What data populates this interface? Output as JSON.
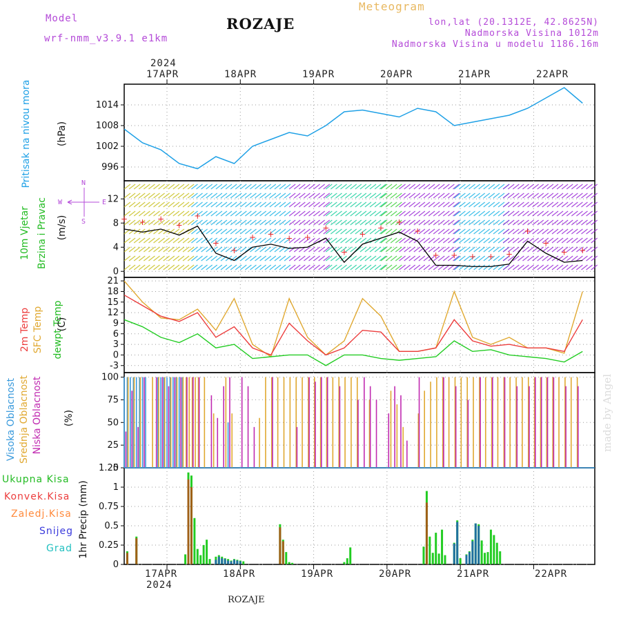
{
  "header": {
    "model_label": "Model",
    "model_name": "wrf-nmm_v3.9.1 e1km",
    "station": "ROZAJE",
    "product": "Meteogram",
    "coords": "lon,lat (20.1312E, 42.8625N)",
    "elevation": "Nadmorska Visina 1012m",
    "model_elevation": "Nadmorska Visina u modelu 1186.16m",
    "watermark": "made by Angel",
    "footer_station": "ROZAJE"
  },
  "colors": {
    "pressure": "#1ea0e6",
    "temp": "#ec3c3c",
    "sfc": "#e0a830",
    "dewpt": "#22cc22",
    "high_cloud": "#3a9adc",
    "mid_cloud": "#e0a830",
    "low_cloud": "#c02ab0",
    "total_precip": "#22cc22",
    "convective": "#ec3c3c",
    "freezing": "#ff8a3c",
    "snow": "#3a3adc",
    "graupel": "#22c0c0",
    "model": "#b44ad8",
    "meteogram": "#e8b860"
  },
  "axes": {
    "year": "2024",
    "dates": [
      "17APR",
      "18APR",
      "19APR",
      "20APR",
      "21APR",
      "22APR"
    ]
  },
  "panels": {
    "pressure": {
      "label1": "Pritisak na nivou mora",
      "unit": "(hPa)"
    },
    "wind": {
      "label1": "10m Vjetar",
      "label2": "Brzina i Pravac",
      "unit": "(m/s)",
      "compass_n": "N",
      "compass_s": "S",
      "compass_w": "W",
      "compass_e": "E"
    },
    "temp": {
      "label1": "2m Temp",
      "label2": "SFC Temp",
      "label3": "dewpt Temp",
      "unit": "(C)"
    },
    "cloud": {
      "label1": "Visoka Oblacnost",
      "label2": "Srednja Oblacnost",
      "label3": "Niska Oblacnost",
      "unit": "(%)"
    },
    "precip": {
      "unit": "1hr Precip (mm)",
      "legend": [
        "Ukupna Kisa",
        "Konvek.Kisa",
        "Zaledj.Kisa",
        "Snijeg",
        "Grad"
      ]
    }
  },
  "chart_data": [
    {
      "type": "line",
      "title": "Pritisak na nivou mora",
      "ylabel": "(hPa)",
      "ylim": [
        992,
        1020
      ],
      "yticks": [
        996,
        1002,
        1008,
        1014
      ],
      "x_hours": [
        0,
        6,
        12,
        18,
        24,
        30,
        36,
        42,
        48,
        54,
        60,
        66,
        72,
        78,
        84,
        90,
        96,
        102,
        108,
        114,
        120,
        126,
        132,
        138,
        144,
        150
      ],
      "series": [
        {
          "values": [
            1007,
            1003,
            1001,
            997,
            995.5,
            999,
            997,
            1002,
            1004,
            1006,
            1005,
            1008,
            1012,
            1012.5,
            1011.5,
            1010.5,
            1013,
            1012,
            1008,
            1009,
            1010,
            1011,
            1013,
            1016,
            1019,
            1014.5
          ]
        }
      ]
    },
    {
      "type": "line",
      "title": "10m Vjetar Brzina i Pravac",
      "ylabel": "(m/s)",
      "ylim": [
        -1,
        15
      ],
      "yticks": [
        0,
        4,
        8,
        12
      ],
      "x_hours": [
        0,
        6,
        12,
        18,
        24,
        30,
        36,
        42,
        48,
        54,
        60,
        66,
        72,
        78,
        84,
        90,
        96,
        102,
        108,
        114,
        120,
        126,
        132,
        138,
        144,
        150
      ],
      "series": [
        {
          "values": [
            7,
            6.5,
            7,
            6,
            7.5,
            3,
            1.8,
            4,
            4.5,
            3.8,
            4,
            5.5,
            1.5,
            4.5,
            5.5,
            6.5,
            5,
            1,
            1,
            0.8,
            0.8,
            1.2,
            5,
            3,
            1.5,
            1.8
          ]
        }
      ]
    },
    {
      "type": "line",
      "title": "2m Temp / SFC Temp / dewpt Temp",
      "ylabel": "(C)",
      "ylim": [
        -5,
        22
      ],
      "yticks": [
        -3,
        0,
        3,
        6,
        9,
        12,
        15,
        18,
        21
      ],
      "x_hours": [
        0,
        6,
        12,
        18,
        24,
        30,
        36,
        42,
        48,
        54,
        60,
        66,
        72,
        78,
        84,
        90,
        96,
        102,
        108,
        114,
        120,
        126,
        132,
        138,
        144,
        150
      ],
      "series": [
        {
          "name": "2m Temp",
          "values": [
            17,
            14,
            11,
            9.5,
            12,
            5,
            8,
            2,
            0,
            9,
            4,
            0,
            2,
            7,
            6.5,
            1,
            1,
            2,
            10,
            4,
            2.5,
            3,
            2,
            2,
            1,
            10
          ]
        },
        {
          "name": "SFC Temp",
          "values": [
            21,
            15,
            10.5,
            10,
            13,
            7,
            16,
            3,
            -0.5,
            16,
            5,
            0,
            4,
            16,
            11,
            1,
            1,
            2,
            18,
            5,
            3,
            5,
            2,
            2,
            0.5,
            18
          ]
        },
        {
          "name": "dewpt Temp",
          "values": [
            10,
            8,
            5,
            3.5,
            6,
            2,
            3,
            -1,
            -0.5,
            0,
            0,
            -3,
            0,
            0,
            -1,
            -1.5,
            -1,
            -0.5,
            4,
            1,
            1.5,
            0,
            -0.5,
            -1,
            -2,
            1
          ]
        }
      ]
    },
    {
      "type": "bar",
      "title": "Visoka / Srednja / Niska Oblacnost",
      "ylabel": "(%)",
      "ylim": [
        0,
        105
      ],
      "yticks": [
        0,
        25,
        50,
        75,
        100
      ],
      "series": [
        {
          "name": "Visoka Oblacnost",
          "x_hours": [
            0,
            1,
            2,
            3,
            4,
            5,
            6,
            7,
            11,
            12,
            13,
            14,
            15,
            16,
            17,
            18,
            19,
            34
          ],
          "values": [
            100,
            100,
            100,
            100,
            100,
            100,
            100,
            100,
            100,
            100,
            100,
            100,
            100,
            100,
            100,
            100,
            100,
            50
          ]
        },
        {
          "name": "Srednja Oblacnost",
          "x_hours": [
            1,
            3,
            5,
            9,
            11,
            13,
            15,
            17,
            19,
            20,
            21,
            22,
            23,
            24,
            26,
            29,
            33,
            35,
            44,
            46,
            48,
            50,
            52,
            54,
            56,
            58,
            60,
            62,
            64,
            66,
            68,
            70,
            72,
            74,
            76,
            80,
            87,
            89,
            91,
            96,
            98,
            100,
            102,
            104,
            106,
            108,
            110,
            112,
            114,
            116,
            118,
            120,
            122,
            124,
            126,
            128,
            130,
            132,
            134,
            136,
            138,
            140,
            142,
            144,
            146,
            148
          ],
          "values": [
            100,
            100,
            100,
            100,
            100,
            100,
            100,
            100,
            100,
            100,
            100,
            100,
            100,
            100,
            100,
            60,
            100,
            60,
            55,
            100,
            100,
            100,
            100,
            100,
            100,
            100,
            100,
            100,
            100,
            100,
            100,
            100,
            100,
            100,
            100,
            75,
            85,
            70,
            45,
            60,
            85,
            95,
            100,
            100,
            100,
            100,
            100,
            100,
            100,
            100,
            100,
            100,
            100,
            100,
            100,
            100,
            100,
            100,
            100,
            100,
            100,
            100,
            100,
            100,
            100,
            100
          ]
        },
        {
          "name": "Niska Oblacnost",
          "x_hours": [
            0,
            2,
            4,
            6,
            10,
            12,
            14,
            16,
            18,
            20,
            22,
            24,
            28,
            30,
            32,
            34,
            38,
            40,
            42,
            48,
            56,
            60,
            62,
            64,
            66,
            70,
            76,
            78,
            80,
            82,
            86,
            88,
            90,
            92,
            96,
            104,
            108,
            112,
            116,
            120,
            124,
            128,
            132,
            134,
            136,
            138,
            140,
            144,
            148
          ],
          "values": [
            40,
            85,
            45,
            100,
            100,
            100,
            90,
            100,
            100,
            100,
            100,
            100,
            80,
            55,
            90,
            100,
            100,
            90,
            45,
            100,
            45,
            100,
            95,
            100,
            100,
            90,
            75,
            100,
            90,
            75,
            60,
            90,
            80,
            30,
            100,
            100,
            90,
            75,
            100,
            100,
            100,
            90,
            90,
            100,
            100,
            100,
            100,
            90,
            90
          ]
        }
      ]
    },
    {
      "type": "bar",
      "title": "1hr Precip",
      "ylabel": "1hr Precip (mm)",
      "ylim": [
        0,
        1.25
      ],
      "yticks": [
        0,
        0.25,
        0.5,
        0.75,
        1,
        1.25
      ],
      "series": [
        {
          "name": "Ukupna Kisa",
          "x_hours": [
            1,
            4,
            20,
            21,
            22,
            23,
            24,
            25,
            26,
            27,
            28,
            30,
            31,
            32,
            33,
            34,
            35,
            36,
            37,
            38,
            39,
            51,
            52,
            53,
            54,
            55,
            72,
            73,
            74,
            98,
            99,
            100,
            101,
            102,
            103,
            104,
            105,
            108,
            109,
            110,
            112,
            113,
            114,
            115,
            116,
            117,
            118,
            119,
            120,
            121,
            122,
            123
          ],
          "values": [
            0.17,
            0.36,
            0.13,
            1.19,
            1.15,
            0.6,
            0.2,
            0.12,
            0.25,
            0.32,
            0.07,
            0.1,
            0.12,
            0.1,
            0.08,
            0.07,
            0.05,
            0.07,
            0.06,
            0.05,
            0.04,
            0.52,
            0.32,
            0.16,
            0.03,
            0.02,
            0.03,
            0.08,
            0.22,
            0.23,
            0.95,
            0.36,
            0.15,
            0.41,
            0.14,
            0.45,
            0.12,
            0.28,
            0.57,
            0.08,
            0.13,
            0.17,
            0.32,
            0.53,
            0.52,
            0.31,
            0.15,
            0.16,
            0.45,
            0.38,
            0.28,
            0.17
          ]
        },
        {
          "name": "Konvek.Kisa",
          "x_hours": [
            1,
            4,
            21,
            22,
            51,
            52,
            99
          ],
          "values": [
            0.15,
            0.34,
            1.1,
            1.0,
            0.48,
            0.3,
            0.8
          ]
        },
        {
          "name": "Snijeg",
          "x_hours": [
            30,
            31,
            32,
            33,
            34,
            35,
            36,
            37,
            38,
            108,
            109,
            112,
            113,
            114,
            115,
            116
          ],
          "values": [
            0.06,
            0.1,
            0.08,
            0.07,
            0.05,
            0.04,
            0.06,
            0.05,
            0.04,
            0.27,
            0.55,
            0.12,
            0.16,
            0.3,
            0.53,
            0.5
          ]
        }
      ]
    }
  ]
}
